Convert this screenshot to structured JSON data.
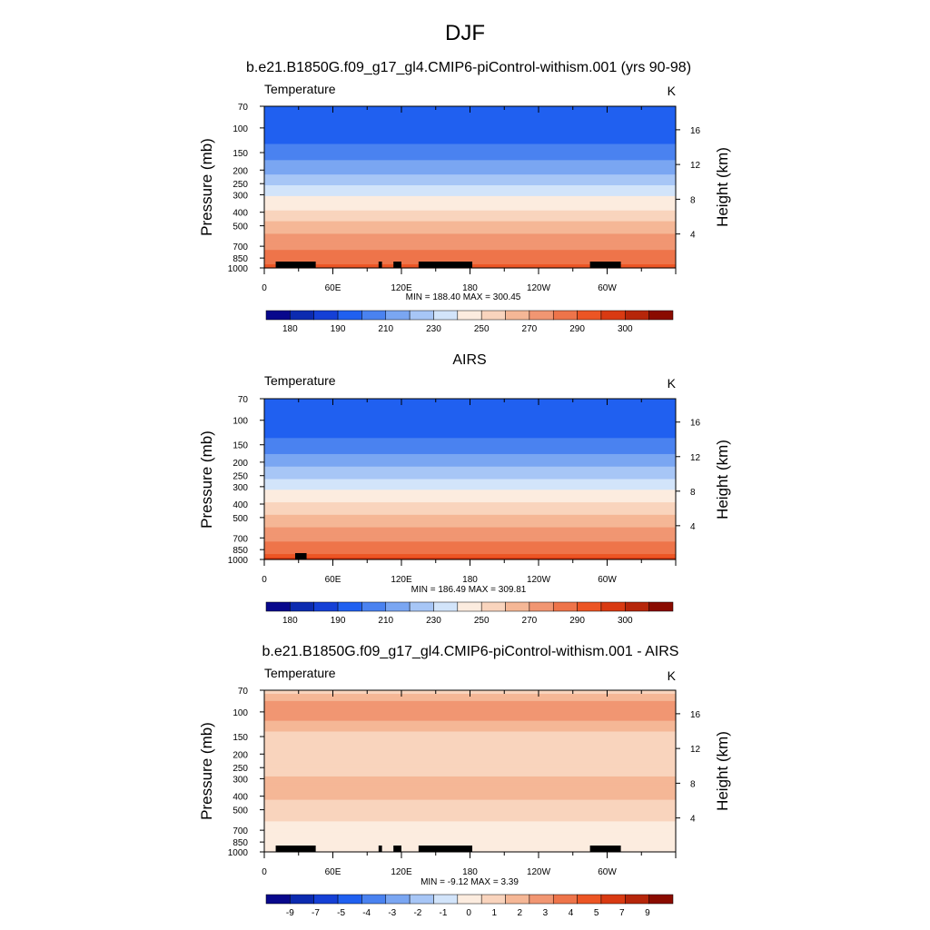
{
  "figure": {
    "title": "DJF",
    "colors": {
      "temp_levels": [
        "#08088c",
        "#0c2bb0",
        "#1540d6",
        "#2060f0",
        "#4a82f0",
        "#7aa6f2",
        "#a7c6f6",
        "#d2e4fa",
        "#fcecdf",
        "#f9d4bd",
        "#f5b796",
        "#f19672",
        "#ee744a",
        "#ec5524",
        "#d93a12",
        "#b6260a",
        "#8a0b00"
      ],
      "diff_levels": [
        "#08088c",
        "#0c2bb0",
        "#1540d6",
        "#2060f0",
        "#4a82f0",
        "#7aa6f2",
        "#a7c6f6",
        "#d2e4fa",
        "#fcecdf",
        "#f9d4bd",
        "#f5b796",
        "#f19672",
        "#ee744a",
        "#ec5524",
        "#d93a12",
        "#b6260a",
        "#8a0b00"
      ],
      "land": "#000000"
    }
  },
  "chart_data": [
    {
      "type": "heatmap",
      "title": "b.e21.B1850G.f09_g17_gl4.CMIP6-piControl-withism.001 (yrs 90-98)",
      "left_label": "Temperature",
      "right_label": "K",
      "ylabel": "Pressure (mb)",
      "y2label": "Height (km)",
      "x_ticks": [
        "0",
        "60E",
        "120E",
        "180",
        "120W",
        "60W"
      ],
      "x_tick_values": [
        0,
        60,
        120,
        180,
        240,
        300
      ],
      "xlim": [
        0,
        360
      ],
      "y_ticks": [
        "70",
        "100",
        "150",
        "200",
        "250",
        "300",
        "400",
        "500",
        "700",
        "850",
        "1000"
      ],
      "y_tick_values": [
        70,
        100,
        150,
        200,
        250,
        300,
        400,
        500,
        700,
        850,
        1000
      ],
      "ylim": [
        1000,
        70
      ],
      "y_scale": "log",
      "y2_ticks": [
        "4",
        "8",
        "12",
        "16"
      ],
      "stats": "MIN = 188.40  MAX = 300.45",
      "colorbar_labels": [
        "180",
        "190",
        "210",
        "230",
        "250",
        "270",
        "290",
        "300"
      ],
      "levels": [
        180,
        185,
        190,
        200,
        210,
        220,
        230,
        240,
        250,
        260,
        270,
        280,
        290,
        295,
        300,
        305
      ],
      "profile_pressure": [
        70,
        85,
        100,
        120,
        150,
        200,
        250,
        300,
        400,
        500,
        600,
        700,
        850,
        925,
        1000
      ],
      "profile_temperature": [
        198,
        192,
        190,
        196,
        206,
        217,
        228,
        239,
        252,
        264,
        272,
        278,
        285,
        289,
        293
      ],
      "land_segments": [
        [
          10,
          45
        ],
        [
          100,
          103
        ],
        [
          113,
          120
        ],
        [
          135,
          182
        ],
        [
          285,
          312
        ]
      ]
    },
    {
      "type": "heatmap",
      "title": "AIRS",
      "left_label": "Temperature",
      "right_label": "K",
      "ylabel": "Pressure (mb)",
      "y2label": "Height (km)",
      "x_ticks": [
        "0",
        "60E",
        "120E",
        "180",
        "120W",
        "60W"
      ],
      "x_tick_values": [
        0,
        60,
        120,
        180,
        240,
        300
      ],
      "xlim": [
        0,
        360
      ],
      "y_ticks": [
        "70",
        "100",
        "150",
        "200",
        "250",
        "300",
        "400",
        "500",
        "700",
        "850",
        "1000"
      ],
      "y_tick_values": [
        70,
        100,
        150,
        200,
        250,
        300,
        400,
        500,
        700,
        850,
        1000
      ],
      "ylim": [
        1000,
        70
      ],
      "y_scale": "log",
      "y2_ticks": [
        "4",
        "8",
        "12",
        "16"
      ],
      "stats": "MIN = 186.49  MAX = 309.81",
      "colorbar_labels": [
        "180",
        "190",
        "210",
        "230",
        "250",
        "270",
        "290",
        "300"
      ],
      "levels": [
        180,
        185,
        190,
        200,
        210,
        220,
        230,
        240,
        250,
        260,
        270,
        280,
        290,
        295,
        300,
        305
      ],
      "profile_pressure": [
        70,
        85,
        100,
        120,
        150,
        200,
        250,
        300,
        400,
        500,
        600,
        700,
        850,
        925,
        1000
      ],
      "profile_temperature": [
        199,
        193,
        190,
        195,
        205,
        216,
        227,
        238,
        251,
        263,
        271,
        278,
        286,
        291,
        297
      ],
      "land_segments": [
        [
          27,
          37
        ]
      ]
    },
    {
      "type": "heatmap",
      "title": "b.e21.B1850G.f09_g17_gl4.CMIP6-piControl-withism.001 - AIRS",
      "left_label": "Temperature",
      "right_label": "K",
      "ylabel": "Pressure (mb)",
      "y2label": "Height (km)",
      "x_ticks": [
        "0",
        "60E",
        "120E",
        "180",
        "120W",
        "60W"
      ],
      "x_tick_values": [
        0,
        60,
        120,
        180,
        240,
        300
      ],
      "xlim": [
        0,
        360
      ],
      "y_ticks": [
        "70",
        "100",
        "150",
        "200",
        "250",
        "300",
        "400",
        "500",
        "700",
        "850",
        "1000"
      ],
      "y_tick_values": [
        70,
        100,
        150,
        200,
        250,
        300,
        400,
        500,
        700,
        850,
        1000
      ],
      "ylim": [
        1000,
        70
      ],
      "y_scale": "log",
      "y2_ticks": [
        "4",
        "8",
        "12",
        "16"
      ],
      "stats": "MIN =  -9.12  MAX =   3.39",
      "colorbar_labels": [
        "-9",
        "-7",
        "-5",
        "-4",
        "-3",
        "-2",
        "-1",
        "0",
        "1",
        "2",
        "3",
        "4",
        "5",
        "7",
        "9"
      ],
      "levels": [
        -10,
        -9,
        -8,
        -7,
        -5,
        -4,
        -3,
        -2,
        -1,
        0,
        1,
        2,
        3,
        4,
        5,
        7,
        9
      ],
      "profile_pressure": [
        70,
        85,
        100,
        120,
        150,
        200,
        250,
        300,
        400,
        500,
        600,
        700,
        850,
        925,
        1000
      ],
      "profile_difference": [
        -0.5,
        1.2,
        1.8,
        0.8,
        -0.6,
        -0.8,
        -0.5,
        0.2,
        0.3,
        -0.7,
        -1.0,
        -1.2,
        -1.4,
        -1.6,
        -1.8
      ],
      "land_segments": [
        [
          10,
          45
        ],
        [
          100,
          103
        ],
        [
          113,
          120
        ],
        [
          135,
          182
        ],
        [
          285,
          312
        ]
      ]
    }
  ]
}
